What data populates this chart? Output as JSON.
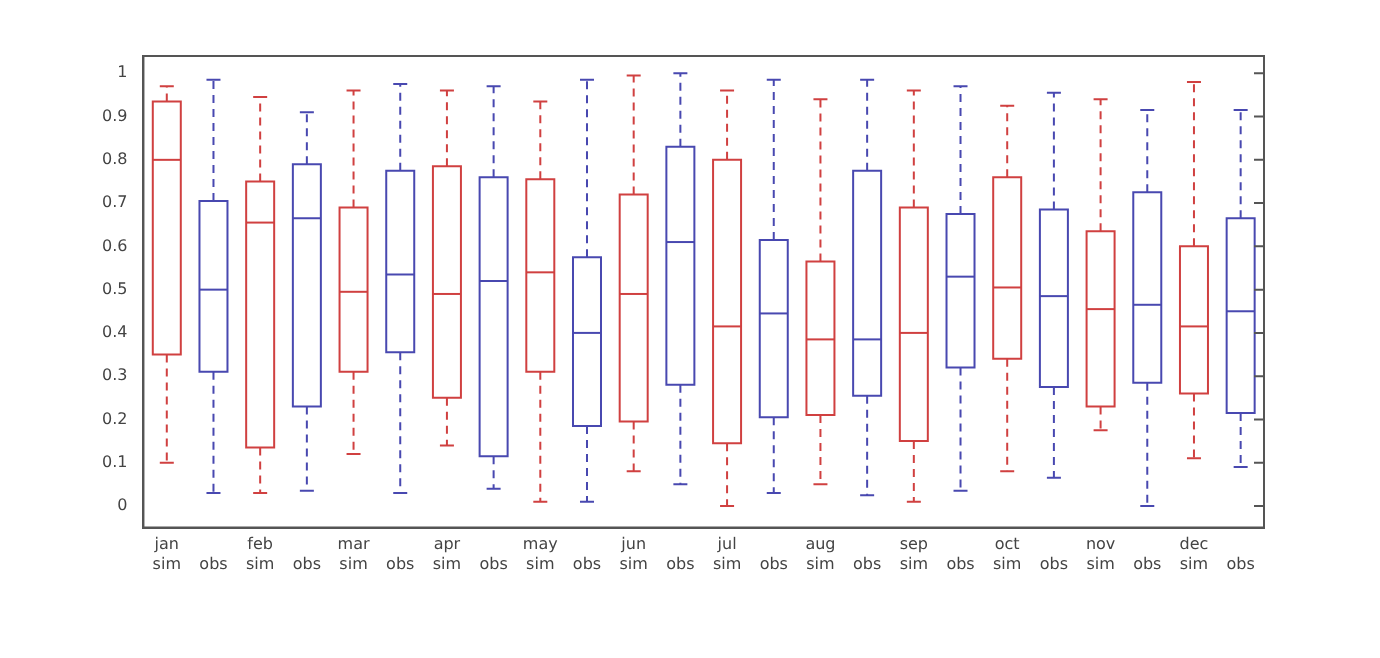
{
  "chart_data": {
    "type": "box",
    "categories": [
      "jan\nsim",
      "obs",
      "feb\nsim",
      "obs",
      "mar\nsim",
      "obs",
      "apr\nsim",
      "obs",
      "may\nsim",
      "obs",
      "jun\nsim",
      "obs",
      "jul\nsim",
      "obs",
      "aug\nsim",
      "obs",
      "sep\nsim",
      "obs",
      "oct\nsim",
      "obs",
      "nov\nsim",
      "obs",
      "dec\nsim",
      "obs"
    ],
    "boxes": [
      {
        "low": 0.1,
        "q1": 0.35,
        "median": 0.8,
        "q3": 0.935,
        "high": 0.97
      },
      {
        "low": 0.03,
        "q1": 0.31,
        "median": 0.5,
        "q3": 0.705,
        "high": 0.985
      },
      {
        "low": 0.03,
        "q1": 0.135,
        "median": 0.655,
        "q3": 0.75,
        "high": 0.945
      },
      {
        "low": 0.035,
        "q1": 0.23,
        "median": 0.665,
        "q3": 0.79,
        "high": 0.91
      },
      {
        "low": 0.12,
        "q1": 0.31,
        "median": 0.495,
        "q3": 0.69,
        "high": 0.96
      },
      {
        "low": 0.03,
        "q1": 0.355,
        "median": 0.535,
        "q3": 0.775,
        "high": 0.975
      },
      {
        "low": 0.14,
        "q1": 0.25,
        "median": 0.49,
        "q3": 0.785,
        "high": 0.96
      },
      {
        "low": 0.04,
        "q1": 0.115,
        "median": 0.52,
        "q3": 0.76,
        "high": 0.97
      },
      {
        "low": 0.01,
        "q1": 0.31,
        "median": 0.54,
        "q3": 0.755,
        "high": 0.935
      },
      {
        "low": 0.01,
        "q1": 0.185,
        "median": 0.4,
        "q3": 0.575,
        "high": 0.985
      },
      {
        "low": 0.08,
        "q1": 0.195,
        "median": 0.49,
        "q3": 0.72,
        "high": 0.995
      },
      {
        "low": 0.05,
        "q1": 0.28,
        "median": 0.61,
        "q3": 0.83,
        "high": 1.0
      },
      {
        "low": 0.0,
        "q1": 0.145,
        "median": 0.415,
        "q3": 0.8,
        "high": 0.96
      },
      {
        "low": 0.03,
        "q1": 0.205,
        "median": 0.445,
        "q3": 0.615,
        "high": 0.985
      },
      {
        "low": 0.05,
        "q1": 0.21,
        "median": 0.385,
        "q3": 0.565,
        "high": 0.94
      },
      {
        "low": 0.025,
        "q1": 0.255,
        "median": 0.385,
        "q3": 0.775,
        "high": 0.985
      },
      {
        "low": 0.01,
        "q1": 0.15,
        "median": 0.4,
        "q3": 0.69,
        "high": 0.96
      },
      {
        "low": 0.035,
        "q1": 0.32,
        "median": 0.53,
        "q3": 0.675,
        "high": 0.97
      },
      {
        "low": 0.08,
        "q1": 0.34,
        "median": 0.505,
        "q3": 0.76,
        "high": 0.925
      },
      {
        "low": 0.065,
        "q1": 0.275,
        "median": 0.485,
        "q3": 0.685,
        "high": 0.955
      },
      {
        "low": 0.175,
        "q1": 0.23,
        "median": 0.455,
        "q3": 0.635,
        "high": 0.94
      },
      {
        "low": 0.0,
        "q1": 0.285,
        "median": 0.465,
        "q3": 0.725,
        "high": 0.915
      },
      {
        "low": 0.11,
        "q1": 0.26,
        "median": 0.415,
        "q3": 0.6,
        "high": 0.98
      },
      {
        "low": 0.09,
        "q1": 0.215,
        "median": 0.45,
        "q3": 0.665,
        "high": 0.915
      }
    ],
    "colors": [
      "#d04040",
      "#4848b0",
      "#d04040",
      "#4848b0",
      "#d04040",
      "#4848b0",
      "#d04040",
      "#4848b0",
      "#d04040",
      "#4848b0",
      "#d04040",
      "#4848b0",
      "#d04040",
      "#4848b0",
      "#d04040",
      "#4848b0",
      "#d04040",
      "#4848b0",
      "#d04040",
      "#4848b0",
      "#d04040",
      "#4848b0",
      "#d04040",
      "#4848b0"
    ],
    "ylim": [
      -0.05,
      1.04
    ],
    "yticks": [
      0,
      0.1,
      0.2,
      0.3,
      0.4,
      0.5,
      0.6,
      0.7,
      0.8,
      0.9,
      1
    ],
    "grid": false,
    "legend": false
  }
}
